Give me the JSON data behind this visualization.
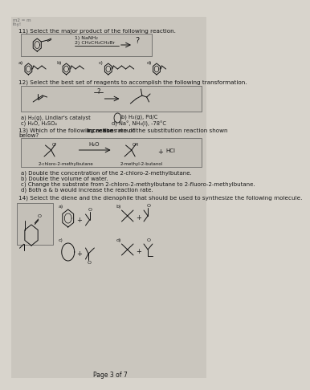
{
  "bg_color": "#d8d4cc",
  "paper_color": "#ccc8c0",
  "box_color": "#c8c4bc",
  "text_color": "#1a1a1a",
  "q11_title": "11) Select the major product of the following reaction.",
  "q11_reagent1": "1) NaNH₂",
  "q11_reagent2": "2) CH₂CH₂CH₂Br",
  "q11_qmark": "?",
  "q12_title": "12) Select the best set of reagents to accomplish the following transformation.",
  "q12_qmark": "?",
  "q12_a": "a) H₂(g), Lindlar's catalyst",
  "q12_b": "b) H₂(g), Pd/C",
  "q12_c": "c) H₂O, H₂SO₄",
  "q12_d": "d) Na°, NH₃(l), -78°C",
  "q13_title": "13) Which of the following actions would ",
  "q13_title_bold": "increase",
  "q13_title2": " the rate of the substitution reaction shown\nbelow?",
  "q13_h2o": "H₂O",
  "q13_hcl": "HCl",
  "q13_label1": "2-chloro-2-methylbutane",
  "q13_label2": "2-methyl-2-butanol",
  "q13_a": "a) Double the concentration of the 2-chloro-2-methylbutane.",
  "q13_b": "b) Double the volume of water.",
  "q13_c": "c) Change the substrate from 2-chloro-2-methylbutane to 2-fluoro-2-methylbutane.",
  "q13_d": "d) Both a & b would increase the reaction rate.",
  "q14_title": "14) Select the diene and the dienophile that should be used to synthesize the following molecule.",
  "footer": "Page 3 of 7"
}
